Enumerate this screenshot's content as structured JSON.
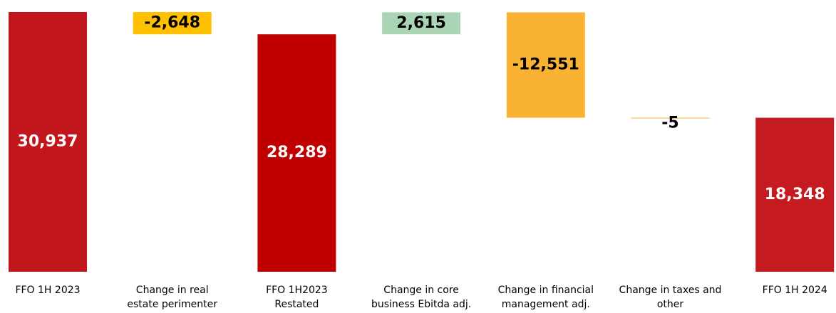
{
  "chart_data": {
    "type": "waterfall",
    "categories": [
      [
        "FFO 1H 2023"
      ],
      [
        "Change in real",
        "estate perimenter"
      ],
      [
        "FFO 1H2023",
        "Restated"
      ],
      [
        "Change in core",
        "business Ebitda adj."
      ],
      [
        "Change in financial",
        "management adj."
      ],
      [
        "Change in taxes and",
        "other"
      ],
      [
        "FFO 1H 2024"
      ]
    ],
    "values": [
      30937,
      -2648,
      28289,
      2615,
      -12551,
      -5,
      18348
    ],
    "value_labels": [
      "30,937",
      "-2,648",
      "28,289",
      "2,615",
      "-12,551",
      "-5",
      "18,348"
    ],
    "measures": [
      "total",
      "relative",
      "total",
      "relative",
      "relative",
      "relative",
      "total"
    ],
    "colors": [
      "#c0161c",
      "#ffc000",
      "#c00000",
      "#a9d5b5",
      "#f9b233",
      "#f9b233",
      "#c41a20"
    ]
  }
}
